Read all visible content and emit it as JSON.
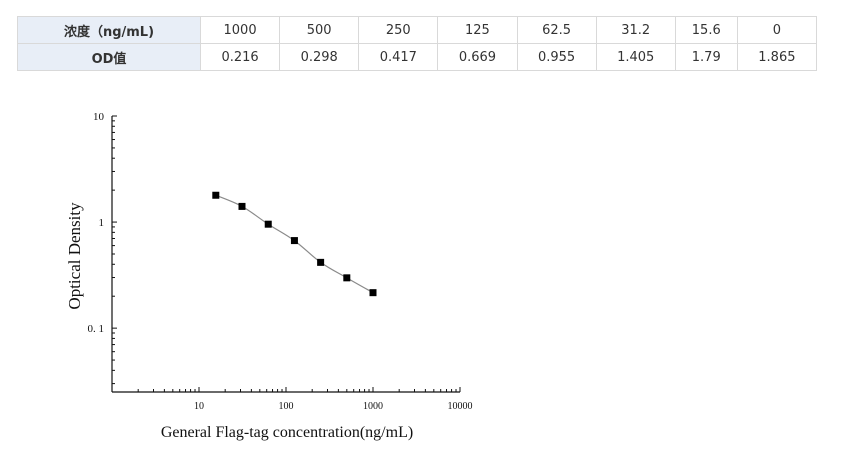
{
  "table": {
    "row1": {
      "label": "浓度（ng/mL)",
      "values": [
        "1000",
        "500",
        "250",
        "125",
        "62.5",
        "31.2",
        "15.6",
        "0"
      ]
    },
    "row2": {
      "label": "OD值",
      "values": [
        "0.216",
        "0.298",
        "0.417",
        "0.669",
        "0.955",
        "1.405",
        "1.79",
        "1.865"
      ]
    }
  },
  "chart_data": {
    "type": "scatter",
    "xlabel": "General Flag-tag concentration(ng/mL)",
    "ylabel": "Optical Density",
    "xscale": "log",
    "yscale": "log",
    "xlim": [
      1,
      10000
    ],
    "ylim": [
      0.025,
      10
    ],
    "xticks": [
      "10",
      "100",
      "1000",
      "10000"
    ],
    "yticks": [
      "10",
      "1",
      "0. 1"
    ],
    "series": [
      {
        "x": [
          15.6,
          31.2,
          62.5,
          125,
          250,
          500,
          1000
        ],
        "y": [
          1.79,
          1.405,
          0.955,
          0.669,
          0.417,
          0.298,
          0.216
        ]
      }
    ],
    "fit_line": true,
    "grid": false
  }
}
